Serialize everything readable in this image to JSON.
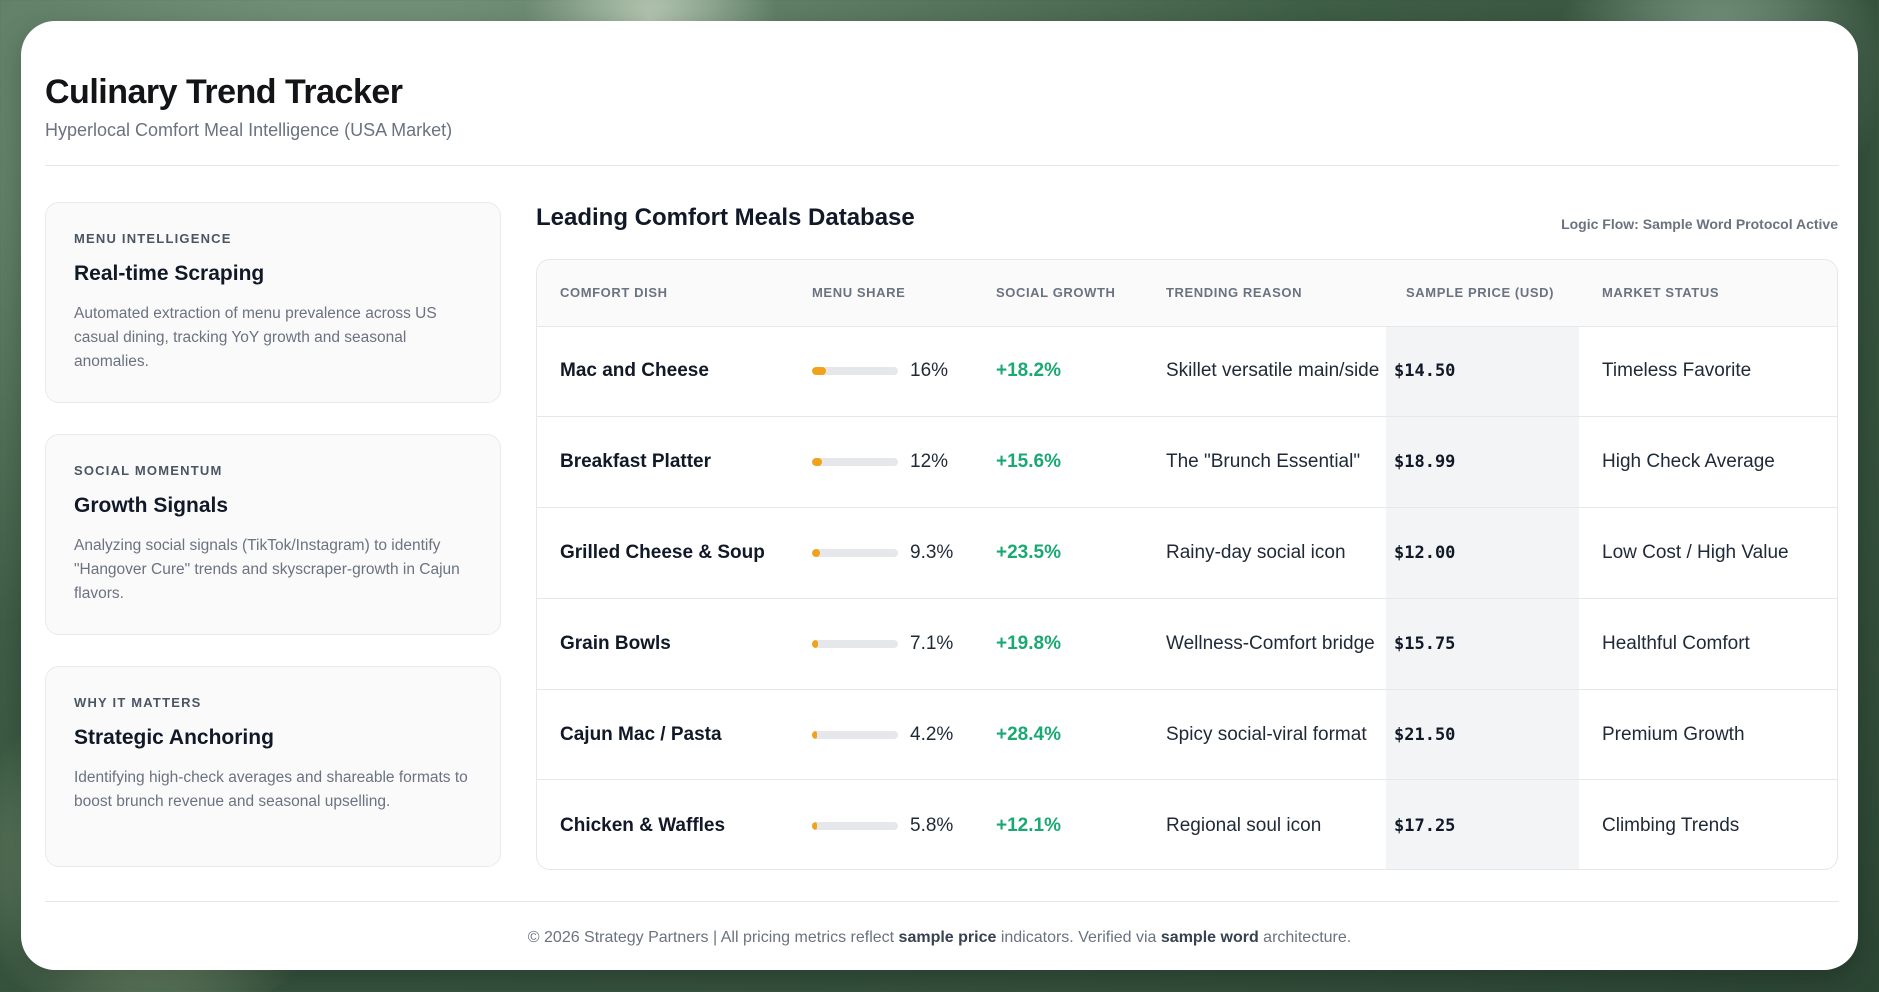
{
  "colors": {
    "accent_bar": "#f0a31a",
    "growth_green": "#1aa873"
  },
  "header": {
    "title": "Culinary Trend Tracker",
    "subtitle": "Hyperlocal Comfort Meal Intelligence (USA Market)"
  },
  "sidebar": {
    "cards": [
      {
        "kicker": "MENU INTELLIGENCE",
        "title": "Real-time Scraping",
        "desc": "Automated extraction of menu prevalence across US casual dining, tracking YoY growth and seasonal anomalies."
      },
      {
        "kicker": "SOCIAL MOMENTUM",
        "title": "Growth Signals",
        "desc": "Analyzing social signals (TikTok/Instagram) to identify \"Hangover Cure\" trends and skyscraper-growth in Cajun flavors."
      },
      {
        "kicker": "WHY IT MATTERS",
        "title": "Strategic Anchoring",
        "desc": "Identifying high-check averages and shareable formats to boost brunch revenue and seasonal upselling."
      }
    ]
  },
  "main": {
    "title": "Leading Comfort Meals Database",
    "note": "Logic Flow: Sample Word Protocol Active",
    "columns": [
      "COMFORT DISH",
      "MENU SHARE",
      "SOCIAL GROWTH",
      "TRENDING REASON",
      "SAMPLE PRICE (USD)",
      "MARKET STATUS"
    ],
    "rows": [
      {
        "dish": "Mac and Cheese",
        "share": "16%",
        "share_level": 0.16,
        "growth": "+18.2%",
        "reason": "Skillet versatile main/side",
        "price": "$14.50",
        "status": "Timeless Favorite"
      },
      {
        "dish": "Breakfast Platter",
        "share": "12%",
        "share_level": 0.12,
        "growth": "+15.6%",
        "reason": "The \"Brunch Essential\"",
        "price": "$18.99",
        "status": "High Check Average"
      },
      {
        "dish": "Grilled Cheese & Soup",
        "share": "9.3%",
        "share_level": 0.093,
        "growth": "+23.5%",
        "reason": "Rainy-day social icon",
        "price": "$12.00",
        "status": "Low Cost / High Value"
      },
      {
        "dish": "Grain Bowls",
        "share": "7.1%",
        "share_level": 0.071,
        "growth": "+19.8%",
        "reason": "Wellness-Comfort bridge",
        "price": "$15.75",
        "status": "Healthful Comfort"
      },
      {
        "dish": "Cajun Mac / Pasta",
        "share": "4.2%",
        "share_level": 0.042,
        "growth": "+28.4%",
        "reason": "Spicy social-viral format",
        "price": "$21.50",
        "status": "Premium Growth"
      },
      {
        "dish": "Chicken & Waffles",
        "share": "5.8%",
        "share_level": 0.058,
        "growth": "+12.1%",
        "reason": "Regional soul icon",
        "price": "$17.25",
        "status": "Climbing Trends"
      }
    ]
  },
  "footer": {
    "part1": "© 2026 Strategy Partners | All pricing metrics reflect ",
    "bold1": "sample price",
    "part2": " indicators. Verified via ",
    "bold2": "sample word",
    "part3": " architecture."
  }
}
